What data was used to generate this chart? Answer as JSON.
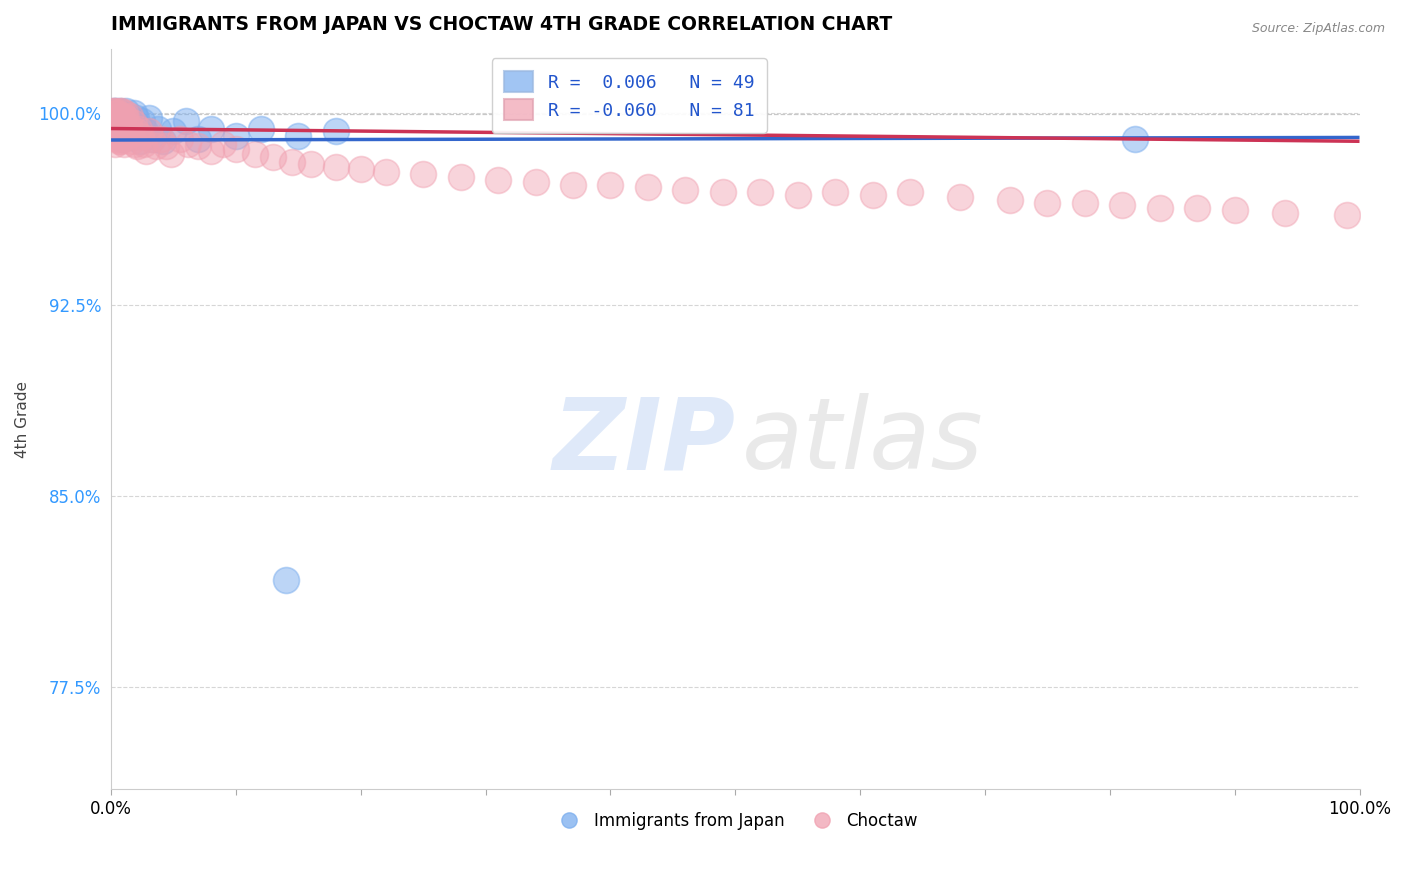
{
  "title": "IMMIGRANTS FROM JAPAN VS CHOCTAW 4TH GRADE CORRELATION CHART",
  "source_text": "Source: ZipAtlas.com",
  "ylabel": "4th Grade",
  "watermark_zip": "ZIP",
  "watermark_atlas": "atlas",
  "xlim": [
    0.0,
    1.0
  ],
  "ylim": [
    0.735,
    1.025
  ],
  "ytick_vals": [
    0.775,
    0.85,
    0.925,
    1.0
  ],
  "ytick_labels": [
    "77.5%",
    "85.0%",
    "92.5%",
    "100.0%"
  ],
  "xtick_vals": [
    0.0,
    0.1,
    0.2,
    0.3,
    0.4,
    0.5,
    0.6,
    0.7,
    0.8,
    0.9,
    1.0
  ],
  "xtick_labels": [
    "0.0%",
    "",
    "",
    "",
    "",
    "",
    "",
    "",
    "",
    "",
    "100.0%"
  ],
  "blue_R": 0.006,
  "blue_N": 49,
  "pink_R": -0.06,
  "pink_N": 81,
  "blue_color": "#7aadee",
  "pink_color": "#f0a0b0",
  "blue_line_color": "#3366cc",
  "pink_line_color": "#cc3355",
  "legend_label_blue": "Immigrants from Japan",
  "legend_label_pink": "Choctaw",
  "blue_trend_y0": 0.9895,
  "blue_trend_y1": 0.9905,
  "pink_trend_y0": 0.994,
  "pink_trend_y1": 0.989,
  "dashed_line_y": 0.9995,
  "blue_x": [
    0.001,
    0.001,
    0.002,
    0.002,
    0.003,
    0.003,
    0.004,
    0.004,
    0.005,
    0.005,
    0.006,
    0.007,
    0.007,
    0.008,
    0.008,
    0.009,
    0.009,
    0.01,
    0.01,
    0.011,
    0.012,
    0.012,
    0.013,
    0.014,
    0.015,
    0.016,
    0.017,
    0.018,
    0.019,
    0.02,
    0.021,
    0.022,
    0.023,
    0.025,
    0.027,
    0.03,
    0.033,
    0.038,
    0.042,
    0.05,
    0.06,
    0.07,
    0.08,
    0.1,
    0.12,
    0.15,
    0.18,
    0.14,
    0.82
  ],
  "blue_y": [
    1.0,
    0.997,
    1.001,
    0.996,
    1.0,
    0.995,
    1.001,
    0.993,
    0.999,
    0.992,
    0.998,
    1.001,
    0.994,
    0.999,
    0.991,
    0.997,
    0.99,
    1.0,
    0.993,
    0.998,
    1.001,
    0.992,
    0.997,
    0.993,
    0.999,
    0.991,
    0.996,
    1.0,
    0.993,
    0.998,
    0.991,
    0.995,
    0.989,
    0.997,
    0.993,
    0.998,
    0.99,
    0.994,
    0.989,
    0.993,
    0.997,
    0.99,
    0.994,
    0.991,
    0.994,
    0.991,
    0.993,
    0.817,
    0.99
  ],
  "pink_x": [
    0.001,
    0.001,
    0.001,
    0.002,
    0.002,
    0.003,
    0.003,
    0.003,
    0.004,
    0.004,
    0.005,
    0.005,
    0.006,
    0.006,
    0.007,
    0.007,
    0.008,
    0.008,
    0.009,
    0.009,
    0.01,
    0.01,
    0.011,
    0.011,
    0.012,
    0.013,
    0.014,
    0.015,
    0.016,
    0.017,
    0.018,
    0.019,
    0.02,
    0.021,
    0.022,
    0.024,
    0.026,
    0.028,
    0.03,
    0.033,
    0.036,
    0.04,
    0.044,
    0.048,
    0.055,
    0.062,
    0.07,
    0.08,
    0.09,
    0.1,
    0.115,
    0.13,
    0.145,
    0.16,
    0.18,
    0.2,
    0.22,
    0.25,
    0.28,
    0.31,
    0.34,
    0.37,
    0.4,
    0.43,
    0.46,
    0.49,
    0.52,
    0.55,
    0.58,
    0.61,
    0.64,
    0.68,
    0.72,
    0.75,
    0.78,
    0.81,
    0.84,
    0.87,
    0.9,
    0.94,
    0.99
  ],
  "pink_y": [
    1.001,
    0.998,
    0.993,
    1.001,
    0.996,
    1.0,
    0.994,
    0.988,
    1.001,
    0.992,
    1.0,
    0.99,
    0.999,
    0.989,
    1.001,
    0.991,
    0.999,
    0.989,
    1.001,
    0.99,
    0.999,
    0.988,
    1.0,
    0.991,
    0.998,
    0.992,
    0.995,
    0.999,
    0.992,
    0.989,
    0.996,
    0.988,
    0.993,
    0.987,
    0.994,
    0.991,
    0.988,
    0.985,
    0.993,
    0.99,
    0.987,
    0.99,
    0.987,
    0.984,
    0.99,
    0.988,
    0.987,
    0.985,
    0.988,
    0.986,
    0.984,
    0.983,
    0.981,
    0.98,
    0.979,
    0.978,
    0.977,
    0.976,
    0.975,
    0.974,
    0.973,
    0.972,
    0.972,
    0.971,
    0.97,
    0.969,
    0.969,
    0.968,
    0.969,
    0.968,
    0.969,
    0.967,
    0.966,
    0.965,
    0.965,
    0.964,
    0.963,
    0.963,
    0.962,
    0.961,
    0.96
  ]
}
